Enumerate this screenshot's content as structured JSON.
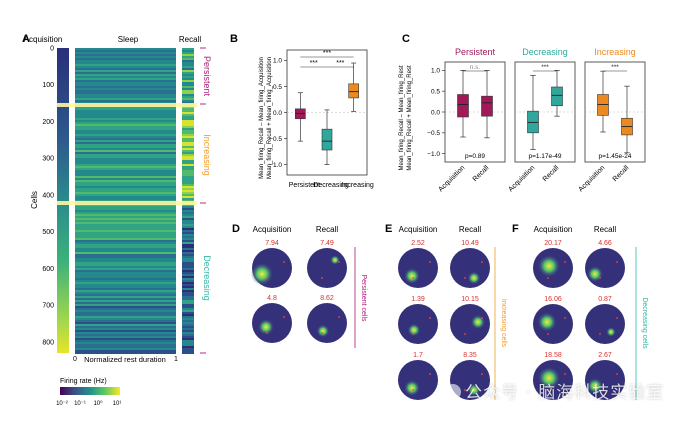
{
  "panels": {
    "A": {
      "letter": "A",
      "col_labels": [
        "Acquisition",
        "Sleep",
        "Recall"
      ],
      "y_label": "Cells",
      "y_ticks": [
        "0",
        "100",
        "200",
        "300",
        "400",
        "500",
        "600",
        "700",
        "800"
      ],
      "x_start": "0",
      "x_end": "1",
      "x_label": "Normalized rest duration",
      "groups": [
        {
          "name": "Persistent",
          "color": "#b0197a"
        },
        {
          "name": "Increasing",
          "color": "#f39c24"
        },
        {
          "name": "Decreasing",
          "color": "#2db7a7"
        }
      ],
      "colorbar_title": "Firing rate (Hz)",
      "colorbar_ticks": [
        "10⁻²",
        "10⁻¹",
        "10⁰",
        "10¹"
      ]
    },
    "B": {
      "letter": "B",
      "y_label_line1": "Mean_firing_Recall – Mean_firing_Acquisition",
      "y_label_line2": "Mean_firing_Recall + Mean_firing_Acquisition",
      "y_ticks": [
        "1.0",
        "0.5",
        "0.0",
        "−0.5",
        "−1.0"
      ],
      "sig": [
        "***",
        "***",
        "***"
      ]
    },
    "C": {
      "letter": "C",
      "y_label_line1": "Mean_firing_Recall – Mean_firing_Rest",
      "y_label_line2": "Mean_firing_Recall + Mean_firing_Rest",
      "y_ticks": [
        "1.0",
        "0.5",
        "0.0",
        "−0.5",
        "−1.0"
      ]
    },
    "D": {
      "letter": "D",
      "col_labels": [
        "Acquisition",
        "Recall"
      ],
      "group_label": "Persistent cells"
    },
    "E": {
      "letter": "E",
      "col_labels": [
        "Acquisition",
        "Recall"
      ],
      "group_label": "Increasing cells"
    },
    "F": {
      "letter": "F",
      "col_labels": [
        "Acquisition",
        "Recall"
      ],
      "group_label": "Decreasing cells"
    }
  },
  "chart_data": [
    {
      "type": "box",
      "panel": "B",
      "categories": [
        "Persistent",
        "Decreasing",
        "Increasing"
      ],
      "colors": [
        "#a01a5a",
        "#2fa79c",
        "#ec8a22"
      ],
      "boxes": [
        {
          "min": -0.55,
          "q1": -0.12,
          "median": -0.02,
          "q3": 0.07,
          "max": 0.38
        },
        {
          "min": -1.0,
          "q1": -0.72,
          "median": -0.55,
          "q3": -0.32,
          "max": 0.05
        },
        {
          "min": 0.02,
          "q1": 0.28,
          "median": 0.4,
          "q3": 0.55,
          "max": 0.95
        }
      ],
      "ylim": [
        -1.2,
        1.2
      ]
    },
    {
      "type": "box",
      "panel": "C",
      "panels": [
        {
          "title": "Persistent",
          "color": "#a01a5a",
          "stat": "n.s.",
          "p_text": "p=0.89",
          "categories": [
            "Acquisition",
            "Recall"
          ],
          "boxes": [
            {
              "min": -0.6,
              "q1": -0.12,
              "median": 0.18,
              "q3": 0.42,
              "max": 1.0
            },
            {
              "min": -0.62,
              "q1": -0.1,
              "median": 0.22,
              "q3": 0.38,
              "max": 1.0
            }
          ]
        },
        {
          "title": "Decreasing",
          "color": "#2fa79c",
          "stat": "***",
          "p_text": "p=1.17e-49",
          "categories": [
            "Acquisition",
            "Recall"
          ],
          "boxes": [
            {
              "min": -0.9,
              "q1": -0.5,
              "median": -0.25,
              "q3": 0.02,
              "max": 0.88
            },
            {
              "min": -0.1,
              "q1": 0.15,
              "median": 0.4,
              "q3": 0.6,
              "max": 1.0
            }
          ]
        },
        {
          "title": "Increasing",
          "color": "#ec8a22",
          "stat": "***",
          "p_text": "p=1.45e-24",
          "categories": [
            "Acquisition",
            "Recall"
          ],
          "boxes": [
            {
              "min": -0.48,
              "q1": -0.08,
              "median": 0.18,
              "q3": 0.42,
              "max": 0.98
            },
            {
              "min": -0.98,
              "q1": -0.55,
              "median": -0.35,
              "q3": -0.15,
              "max": 0.62
            }
          ]
        }
      ],
      "ylim": [
        -1.2,
        1.2
      ]
    },
    {
      "type": "heatmap",
      "panel": "D",
      "rows": [
        {
          "acquisition": "7.94",
          "recall": "7.49"
        },
        {
          "acquisition": "4.8",
          "recall": "8.62"
        }
      ]
    },
    {
      "type": "heatmap",
      "panel": "E",
      "rows": [
        {
          "acquisition": "2.52",
          "recall": "10.49"
        },
        {
          "acquisition": "1.39",
          "recall": "10.15"
        },
        {
          "acquisition": "1.7",
          "recall": "8.35"
        }
      ]
    },
    {
      "type": "heatmap",
      "panel": "F",
      "rows": [
        {
          "acquisition": "20.17",
          "recall": "4.66"
        },
        {
          "acquisition": "16.06",
          "recall": "0.87"
        },
        {
          "acquisition": "18.58",
          "recall": "2.67"
        }
      ]
    }
  ],
  "watermark": "公众号 · 脑海科技实验室"
}
